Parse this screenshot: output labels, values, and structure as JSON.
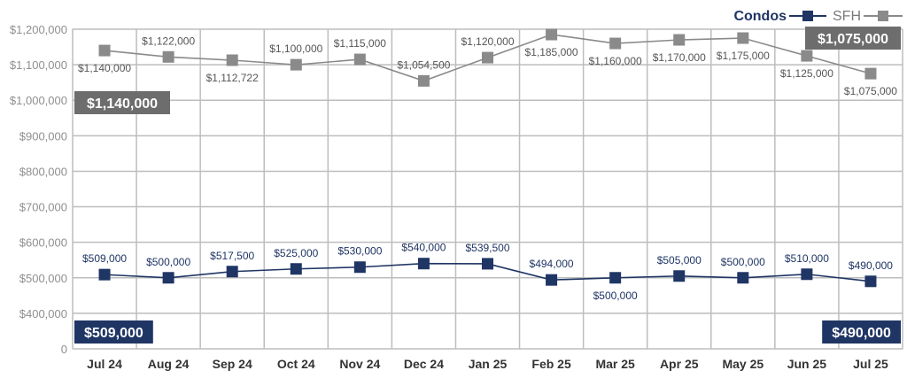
{
  "chart_data": {
    "type": "line",
    "categories": [
      "Jul 24",
      "Aug 24",
      "Sep 24",
      "Oct 24",
      "Nov 24",
      "Dec 24",
      "Jan 25",
      "Feb 25",
      "Mar 25",
      "Apr 25",
      "May 25",
      "Jun 25",
      "Jul 25"
    ],
    "ylim": [
      0,
      1200000
    ],
    "y_ticks": [
      "0",
      "$400,000",
      "$500,000",
      "$600,000",
      "$700,000",
      "$800,000",
      "$900,000",
      "$1,000,000",
      "$1,100,000",
      "$1,200,000"
    ],
    "y_tick_values": [
      0,
      400000,
      500000,
      600000,
      700000,
      800000,
      900000,
      1000000,
      1100000,
      1200000
    ],
    "axis_break": true,
    "grid": true,
    "legend": "top-right",
    "series": [
      {
        "name": "Condos",
        "color": "#1f3564",
        "marker": "square",
        "values": [
          509000,
          500000,
          517500,
          525000,
          530000,
          540000,
          539500,
          494000,
          500000,
          505000,
          500000,
          510000,
          490000
        ],
        "labels": [
          "$509,000",
          "$500,000",
          "$517,500",
          "$525,000",
          "$530,000",
          "$540,000",
          "$539,500",
          "$494,000",
          "$500,000",
          "$505,000",
          "$500,000",
          "$510,000",
          "$490,000"
        ],
        "label_above": [
          true,
          true,
          true,
          true,
          true,
          true,
          true,
          true,
          false,
          true,
          true,
          true,
          true
        ]
      },
      {
        "name": "SFH",
        "color": "#8a8a8a",
        "marker": "square",
        "values": [
          1140000,
          1122000,
          1112722,
          1100000,
          1115000,
          1054500,
          1120000,
          1185000,
          1160000,
          1170000,
          1175000,
          1125000,
          1075000
        ],
        "labels": [
          "$1,140,000",
          "$1,122,000",
          "$1,112,722",
          "$1,100,000",
          "$1,115,000",
          "$1,054,500",
          "$1,120,000",
          "$1,185,000",
          "$1,160,000",
          "$1,170,000",
          "$1,175,000",
          "$1,125,000",
          "$1,075,000"
        ],
        "label_above": [
          false,
          true,
          false,
          true,
          true,
          true,
          true,
          false,
          false,
          false,
          false,
          false,
          false
        ]
      }
    ],
    "callouts": [
      {
        "text": "$1,140,000",
        "color": "#6d6d6d",
        "side": "left",
        "series": "SFH"
      },
      {
        "text": "$1,075,000",
        "color": "#6d6d6d",
        "side": "right",
        "series": "SFH"
      },
      {
        "text": "$509,000",
        "color": "#1f3564",
        "side": "left",
        "series": "Condos"
      },
      {
        "text": "$490,000",
        "color": "#1f3564",
        "side": "right",
        "series": "Condos"
      }
    ]
  }
}
